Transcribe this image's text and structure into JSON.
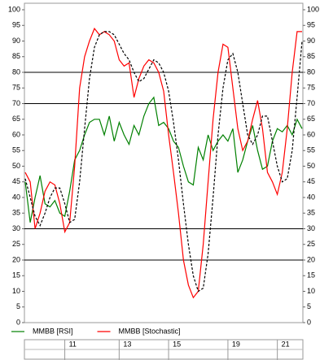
{
  "chart_data": {
    "type": "line",
    "categories": [
      null,
      null,
      null,
      null,
      null,
      null,
      null,
      null,
      "11",
      null,
      null,
      null,
      null,
      null,
      null,
      null,
      null,
      null,
      null,
      "13",
      null,
      null,
      null,
      null,
      null,
      null,
      null,
      null,
      null,
      "15",
      null,
      null,
      null,
      null,
      null,
      null,
      null,
      null,
      null,
      null,
      null,
      "19",
      null,
      null,
      null,
      null,
      null,
      null,
      null,
      null,
      null,
      "21",
      null,
      null,
      null,
      null,
      null
    ],
    "series": [
      {
        "name": "MMBB [RSI]",
        "color": "#008000",
        "values": [
          45,
          32,
          40,
          47,
          38,
          37,
          39,
          35,
          34,
          42,
          52,
          55,
          60,
          64,
          65,
          65,
          60,
          66,
          58,
          64,
          60,
          57,
          63,
          60,
          66,
          70,
          72,
          63,
          64,
          62,
          58,
          56,
          50,
          45,
          44,
          56,
          52,
          60,
          55,
          58,
          60,
          58,
          62,
          48,
          52,
          58,
          63,
          55,
          49,
          50,
          58,
          62,
          61,
          63,
          60,
          65,
          62
        ]
      },
      {
        "name": "MMBB [Stochastic]",
        "color": "#ff0000",
        "values": [
          48,
          45,
          30,
          35,
          42,
          45,
          44,
          38,
          29,
          32,
          50,
          75,
          85,
          90,
          94,
          92,
          93,
          92,
          90,
          84,
          82,
          83,
          72,
          78,
          82,
          84,
          83,
          80,
          74,
          60,
          48,
          35,
          20,
          12,
          8,
          10,
          25,
          45,
          65,
          80,
          89,
          88,
          75,
          62,
          55,
          58,
          65,
          71,
          62,
          48,
          45,
          41,
          48,
          62,
          80,
          93,
          93
        ]
      },
      {
        "color": "#000000",
        "dash": true,
        "values": [
          46,
          40,
          34,
          31,
          35,
          40,
          43,
          43,
          38,
          32,
          33,
          45,
          62,
          78,
          88,
          92,
          93,
          93,
          92,
          89,
          86,
          84,
          80,
          77,
          78,
          81,
          84,
          83,
          80,
          74,
          64,
          52,
          38,
          25,
          15,
          10,
          11,
          22,
          40,
          60,
          75,
          84,
          86,
          80,
          70,
          60,
          57,
          60,
          66,
          66,
          58,
          50,
          45,
          46,
          55,
          72,
          90
        ]
      }
    ],
    "ylim": [
      0,
      100
    ],
    "yticks": [
      0,
      5,
      10,
      15,
      20,
      25,
      30,
      35,
      40,
      45,
      50,
      55,
      60,
      65,
      70,
      75,
      80,
      85,
      90,
      95,
      100
    ],
    "hlines": [
      20,
      30,
      70,
      80
    ]
  }
}
